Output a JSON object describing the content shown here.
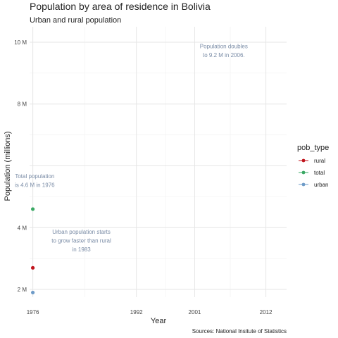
{
  "chart_data": {
    "type": "scatter",
    "title": "Population by area of residence in Bolivia",
    "subtitle": "Urban and rural population",
    "xlabel": "Year",
    "ylabel": "Population (millions)",
    "caption": "Sources: National Insitute of Statistics",
    "xlim": [
      1975.5,
      2015.2
    ],
    "ylim": [
      1.75,
      10.5
    ],
    "x_ticks": [
      1976,
      1992,
      2001,
      2012
    ],
    "x_tick_labels": [
      "1976",
      "1992",
      "2001",
      "2012"
    ],
    "y_ticks": [
      2,
      4,
      6,
      8,
      10
    ],
    "y_tick_labels": [
      "2 M",
      "4 M",
      "",
      "8 M",
      "10 M"
    ],
    "grid": true,
    "legend_title": "pob_type",
    "legend_position": "right",
    "series": [
      {
        "name": "rural",
        "color": "#c0141c",
        "points": [
          {
            "x": 1976,
            "y": 2.7
          }
        ]
      },
      {
        "name": "total",
        "color": "#3aa864",
        "points": [
          {
            "x": 1976,
            "y": 4.6
          }
        ]
      },
      {
        "name": "urban",
        "color": "#6e9bc8",
        "points": [
          {
            "x": 1976,
            "y": 1.9
          }
        ]
      }
    ],
    "annotations": [
      {
        "lines": [
          "Population doubles",
          "to 9.2 M in 2006."
        ],
        "x": 2005.5,
        "y": 9.8
      },
      {
        "lines": [
          "Total population",
          "is 4.6 M in 1976"
        ],
        "x": 1976.3,
        "y": 5.6
      },
      {
        "lines": [
          "Urban population starts",
          "to grow faster than rural",
          "in 1983"
        ],
        "x": 1983.5,
        "y": 3.8
      }
    ]
  }
}
